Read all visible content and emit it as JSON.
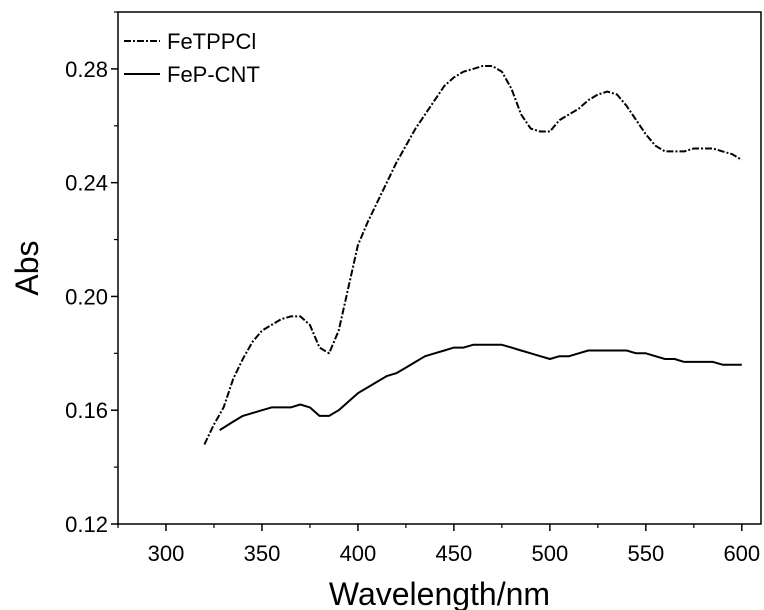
{
  "chart_data": {
    "type": "line",
    "title": "",
    "xlabel": "Wavelength/nm",
    "ylabel": "Abs",
    "xlim": [
      275,
      610
    ],
    "ylim": [
      0.12,
      0.3
    ],
    "x_ticks": [
      300,
      350,
      400,
      450,
      500,
      550,
      600
    ],
    "y_ticks": [
      0.12,
      0.16,
      0.2,
      0.24,
      0.28
    ],
    "x_tick_labels": [
      "300",
      "350",
      "400",
      "450",
      "500",
      "550",
      "600"
    ],
    "y_tick_labels": [
      "0.12",
      "0.16",
      "0.20",
      "0.24",
      "0.28"
    ],
    "grid": false,
    "legend": "top-left",
    "series": [
      {
        "name": "FeTPPCl",
        "style": "dash-dot",
        "color": "#000000",
        "x": [
          320,
          325,
          330,
          335,
          340,
          345,
          350,
          355,
          360,
          365,
          370,
          375,
          380,
          385,
          390,
          395,
          400,
          405,
          410,
          415,
          420,
          425,
          430,
          435,
          440,
          445,
          450,
          455,
          460,
          465,
          470,
          475,
          480,
          485,
          490,
          495,
          500,
          505,
          510,
          515,
          520,
          525,
          530,
          535,
          540,
          545,
          550,
          555,
          560,
          565,
          570,
          575,
          580,
          585,
          590,
          595,
          600
        ],
        "values": [
          0.148,
          0.155,
          0.161,
          0.171,
          0.178,
          0.184,
          0.188,
          0.19,
          0.192,
          0.193,
          0.193,
          0.19,
          0.182,
          0.18,
          0.188,
          0.203,
          0.218,
          0.226,
          0.233,
          0.24,
          0.247,
          0.253,
          0.259,
          0.264,
          0.269,
          0.274,
          0.277,
          0.279,
          0.28,
          0.281,
          0.281,
          0.279,
          0.273,
          0.264,
          0.259,
          0.258,
          0.258,
          0.262,
          0.264,
          0.266,
          0.269,
          0.271,
          0.272,
          0.271,
          0.267,
          0.262,
          0.257,
          0.253,
          0.251,
          0.251,
          0.251,
          0.252,
          0.252,
          0.252,
          0.251,
          0.25,
          0.248
        ]
      },
      {
        "name": "FeP-CNT",
        "style": "solid",
        "color": "#000000",
        "x": [
          328,
          335,
          340,
          345,
          350,
          355,
          360,
          365,
          370,
          375,
          380,
          385,
          390,
          395,
          400,
          405,
          410,
          415,
          420,
          425,
          430,
          435,
          440,
          445,
          450,
          455,
          460,
          465,
          470,
          475,
          480,
          485,
          490,
          495,
          500,
          505,
          510,
          515,
          520,
          525,
          530,
          535,
          540,
          545,
          550,
          555,
          560,
          565,
          570,
          575,
          580,
          585,
          590,
          595,
          600
        ],
        "values": [
          0.153,
          0.156,
          0.158,
          0.159,
          0.16,
          0.161,
          0.161,
          0.161,
          0.162,
          0.161,
          0.158,
          0.158,
          0.16,
          0.163,
          0.166,
          0.168,
          0.17,
          0.172,
          0.173,
          0.175,
          0.177,
          0.179,
          0.18,
          0.181,
          0.182,
          0.182,
          0.183,
          0.183,
          0.183,
          0.183,
          0.182,
          0.181,
          0.18,
          0.179,
          0.178,
          0.179,
          0.179,
          0.18,
          0.181,
          0.181,
          0.181,
          0.181,
          0.181,
          0.18,
          0.18,
          0.179,
          0.178,
          0.178,
          0.177,
          0.177,
          0.177,
          0.177,
          0.176,
          0.176,
          0.176
        ]
      }
    ]
  }
}
